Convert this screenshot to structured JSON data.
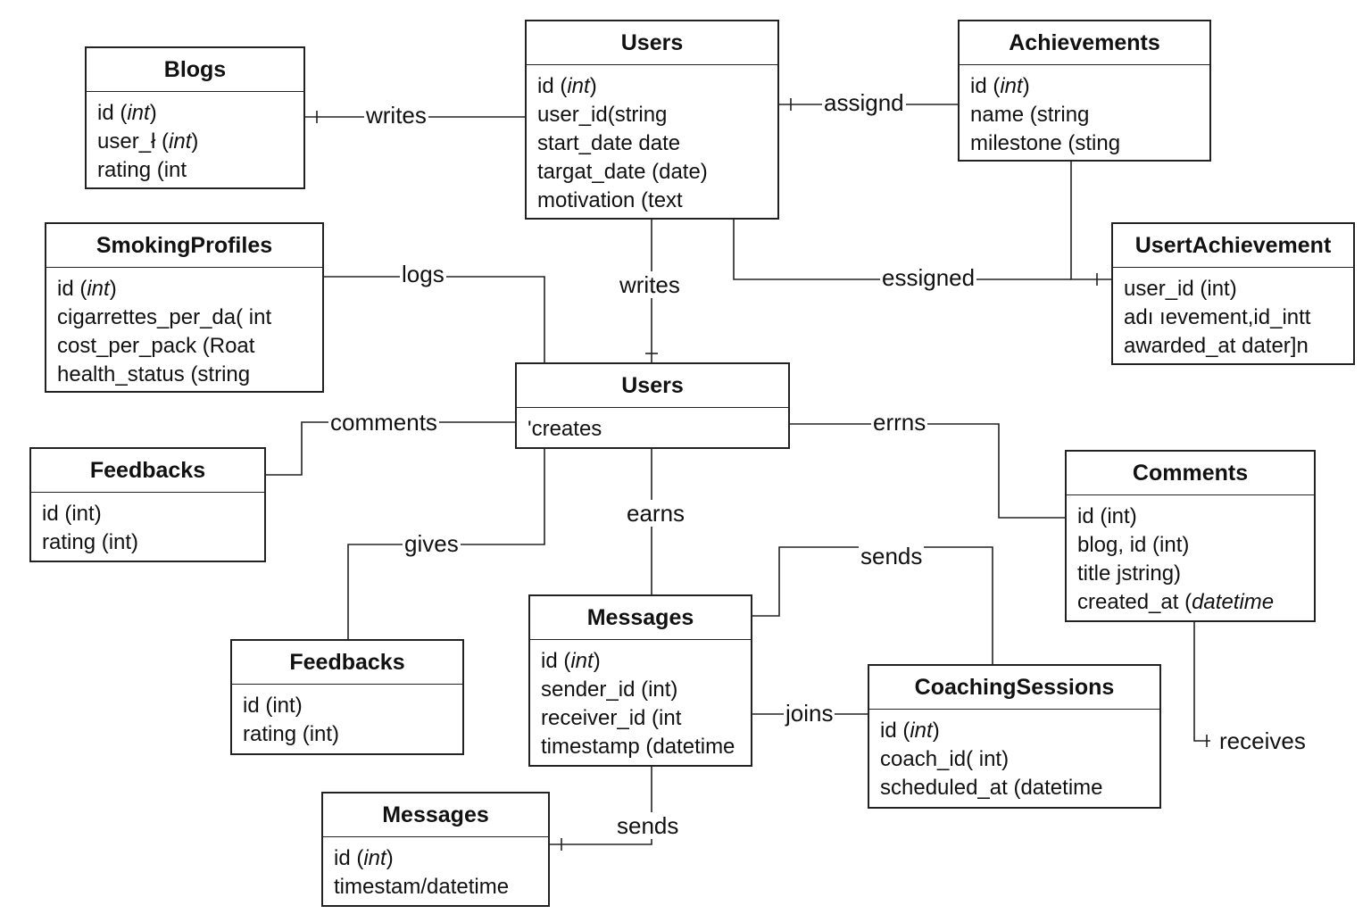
{
  "entities": {
    "blogs": {
      "title": "Blogs",
      "fields": [
        [
          "id (",
          "int",
          ")"
        ],
        [
          "user_ł (",
          "int",
          ")"
        ],
        [
          "rating (int",
          "",
          ""
        ]
      ]
    },
    "users_top": {
      "title": "Users",
      "fields": [
        [
          "id (",
          "int",
          ")"
        ],
        [
          "user_id(string",
          "",
          ""
        ],
        [
          "start_date date",
          "",
          ""
        ],
        [
          "targat_date (date)",
          "",
          ""
        ],
        [
          "motivation  (text",
          "",
          ""
        ]
      ]
    },
    "achievements": {
      "title": "Achievements",
      "fields": [
        [
          "id (",
          "int",
          ")"
        ],
        [
          "name (string",
          "",
          ""
        ],
        [
          "milestone (sting",
          "",
          ""
        ]
      ]
    },
    "smoking_profiles": {
      "title": "SmokingProfiles",
      "fields": [
        [
          "id (",
          "int",
          ")"
        ],
        [
          "cigarrettes_per_da( int",
          "",
          ""
        ],
        [
          "cost_per_pack (Roat",
          "",
          ""
        ],
        [
          "health_status (string",
          "",
          ""
        ]
      ]
    },
    "user_achievement": {
      "title": "UsertAchievement",
      "fields": [
        [
          "user_id (int)",
          "",
          ""
        ],
        [
          "adı ıevement,id_intt",
          "",
          ""
        ],
        [
          "awarded_at dater]n",
          "",
          ""
        ]
      ]
    },
    "users_mid": {
      "title": "Users",
      "fields": [
        [
          "'creates",
          "",
          ""
        ]
      ]
    },
    "feedbacks_left": {
      "title": "Feedbacks",
      "fields": [
        [
          "id (int)",
          "",
          ""
        ],
        [
          "rating (int)",
          "",
          ""
        ]
      ]
    },
    "comments": {
      "title": "Comments",
      "fields": [
        [
          "id (int)",
          "",
          ""
        ],
        [
          "blog, id (int)",
          "",
          ""
        ],
        [
          "title jstring)",
          "",
          ""
        ],
        [
          "created_at  (",
          "datetime",
          ""
        ]
      ]
    },
    "feedbacks_mid": {
      "title": "Feedbacks",
      "fields": [
        [
          "id (int)",
          "",
          ""
        ],
        [
          "rating  (int)",
          "",
          ""
        ]
      ]
    },
    "messages_mid": {
      "title": "Messages",
      "fields": [
        [
          "id (",
          "int",
          ")"
        ],
        [
          "sender_id (int)",
          "",
          ""
        ],
        [
          "receiver_id (int",
          "",
          ""
        ],
        [
          "timestamp (datetime",
          "",
          ""
        ]
      ]
    },
    "coaching_sessions": {
      "title": "CoachingSessions",
      "fields": [
        [
          "id (",
          "int",
          ")"
        ],
        [
          "coach_id( int)",
          "",
          ""
        ],
        [
          "scheduled_at (datetime",
          "",
          ""
        ]
      ]
    },
    "messages_bottom": {
      "title": "Messages",
      "fields": [
        [
          "id (",
          "int",
          ")"
        ],
        [
          "timestam/datetime",
          "",
          ""
        ]
      ]
    }
  },
  "relations": {
    "writes_blogs": "writes",
    "assignd": "assignd",
    "logs": "logs",
    "writes_down": "writes",
    "essigned": "essigned",
    "comments": "comments",
    "errns": "errns",
    "gives": "gives",
    "earns": "earns",
    "sends_top": "sends",
    "joins": "joins",
    "receives": "receives",
    "sends_bottom": "sends"
  }
}
